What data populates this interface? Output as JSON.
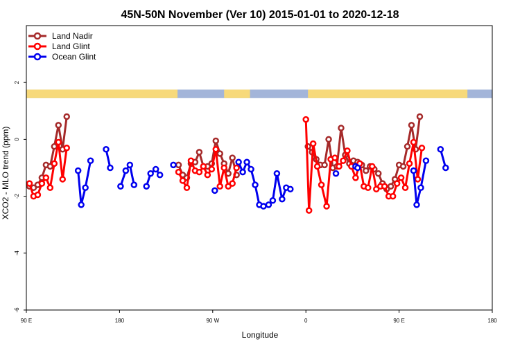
{
  "chart_data": {
    "type": "line",
    "title": "45N-50N November (Ver 10)   2015-01-01 to 2020-12-18",
    "xlabel": "Longitude",
    "ylabel": "XCO2 - MLO trend (ppm)",
    "xlim": [
      90,
      540
    ],
    "ylim": [
      -6,
      4
    ],
    "x_ticks": [
      {
        "value": 90,
        "label": "90 E"
      },
      {
        "value": 180,
        "label": "180"
      },
      {
        "value": 270,
        "label": "90 W"
      },
      {
        "value": 360,
        "label": "0"
      },
      {
        "value": 450,
        "label": "90 E"
      },
      {
        "value": 540,
        "label": "180"
      }
    ],
    "y_ticks": [
      {
        "value": -6,
        "label": "-6"
      },
      {
        "value": -4,
        "label": "-4"
      },
      {
        "value": -2,
        "label": "-2"
      },
      {
        "value": 0,
        "label": "0"
      },
      {
        "value": 2,
        "label": "2"
      }
    ],
    "land_band": {
      "y_range": [
        1.45,
        1.75
      ],
      "ocean_color": "#a3b5d9",
      "land_color": "#f7d97a",
      "land_segments": [
        [
          90,
          236
        ],
        [
          281,
          306
        ],
        [
          362,
          516
        ]
      ]
    },
    "legend_position": "top-left",
    "series": [
      {
        "name": "Land Nadir",
        "color": "#a52a2a",
        "segments": [
          [
            [
              93,
              -1.65
            ],
            [
              97,
              -1.7
            ],
            [
              101,
              -1.6
            ],
            [
              105,
              -1.35
            ],
            [
              109,
              -0.9
            ],
            [
              113,
              -0.95
            ],
            [
              117,
              -0.25
            ],
            [
              121,
              0.5
            ],
            [
              125,
              -0.35
            ],
            [
              129,
              0.8
            ]
          ],
          [
            [
              237,
              -0.9
            ],
            [
              241,
              -1.25
            ],
            [
              245,
              -1.35
            ],
            [
              249,
              -0.85
            ],
            [
              253,
              -0.8
            ],
            [
              257,
              -0.45
            ],
            [
              261,
              -0.95
            ],
            [
              265,
              -0.95
            ],
            [
              269,
              -0.85
            ],
            [
              273,
              -0.05
            ],
            [
              277,
              -0.5
            ],
            [
              281,
              -0.85
            ],
            [
              285,
              -1.2
            ],
            [
              289,
              -0.65
            ],
            [
              293,
              -1.25
            ]
          ],
          [
            [
              362,
              -0.25
            ],
            [
              366,
              -0.45
            ],
            [
              370,
              -0.7
            ],
            [
              374,
              -0.9
            ],
            [
              378,
              -0.9
            ],
            [
              382,
              0.0
            ],
            [
              386,
              -1.0
            ],
            [
              390,
              -0.95
            ],
            [
              394,
              0.4
            ],
            [
              398,
              -0.55
            ],
            [
              402,
              -0.85
            ],
            [
              406,
              -0.75
            ],
            [
              410,
              -0.8
            ],
            [
              414,
              -0.9
            ],
            [
              418,
              -1.1
            ],
            [
              422,
              -0.95
            ],
            [
              426,
              -1.05
            ],
            [
              430,
              -1.2
            ],
            [
              434,
              -1.55
            ],
            [
              438,
              -1.75
            ],
            [
              442,
              -1.65
            ],
            [
              446,
              -1.4
            ],
            [
              450,
              -0.9
            ],
            [
              454,
              -0.95
            ],
            [
              458,
              -0.25
            ],
            [
              462,
              0.5
            ],
            [
              466,
              -0.35
            ],
            [
              470,
              0.8
            ]
          ]
        ]
      },
      {
        "name": "Land Glint",
        "color": "#ff0000",
        "segments": [
          [
            [
              93,
              -1.55
            ],
            [
              97,
              -2.0
            ],
            [
              101,
              -1.95
            ],
            [
              105,
              -1.55
            ],
            [
              109,
              -1.35
            ],
            [
              113,
              -1.7
            ],
            [
              117,
              -0.85
            ],
            [
              121,
              -0.1
            ],
            [
              125,
              -1.4
            ],
            [
              129,
              -0.3
            ]
          ],
          [
            [
              237,
              -1.15
            ],
            [
              241,
              -1.45
            ],
            [
              245,
              -1.7
            ],
            [
              249,
              -0.75
            ],
            [
              253,
              -1.1
            ],
            [
              257,
              -1.15
            ],
            [
              261,
              -0.95
            ],
            [
              265,
              -1.25
            ],
            [
              269,
              -1.05
            ],
            [
              273,
              -0.35
            ],
            [
              277,
              -1.65
            ],
            [
              281,
              -1.0
            ],
            [
              285,
              -1.65
            ],
            [
              289,
              -1.55
            ],
            [
              293,
              -1.0
            ]
          ],
          [
            [
              360,
              0.7
            ],
            [
              363,
              -2.5
            ],
            [
              367,
              -0.15
            ],
            [
              371,
              -0.95
            ],
            [
              375,
              -1.6
            ],
            [
              380,
              -2.35
            ],
            [
              384,
              -0.7
            ],
            [
              388,
              -0.65
            ],
            [
              392,
              -0.95
            ],
            [
              396,
              -0.75
            ],
            [
              400,
              -0.4
            ],
            [
              404,
              -0.95
            ],
            [
              408,
              -1.35
            ],
            [
              412,
              -0.85
            ],
            [
              416,
              -1.65
            ],
            [
              420,
              -1.7
            ],
            [
              424,
              -0.95
            ],
            [
              428,
              -1.75
            ],
            [
              432,
              -1.65
            ],
            [
              436,
              -1.65
            ],
            [
              440,
              -2.0
            ],
            [
              444,
              -2.0
            ],
            [
              448,
              -1.55
            ],
            [
              452,
              -1.35
            ],
            [
              456,
              -1.7
            ],
            [
              460,
              -0.85
            ],
            [
              464,
              -0.1
            ],
            [
              468,
              -1.4
            ],
            [
              472,
              -0.3
            ]
          ]
        ]
      },
      {
        "name": "Ocean Glint",
        "color": "#0000ee",
        "segments": [
          [
            [
              140,
              -1.1
            ],
            [
              143,
              -2.3
            ],
            [
              147,
              -1.7
            ],
            [
              152,
              -0.75
            ]
          ],
          [
            [
              167,
              -0.35
            ],
            [
              171,
              -1.0
            ]
          ],
          [
            [
              181,
              -1.65
            ],
            [
              186,
              -1.1
            ],
            [
              190,
              -0.9
            ],
            [
              194,
              -1.6
            ]
          ],
          [
            [
              206,
              -1.65
            ],
            [
              210,
              -1.2
            ],
            [
              215,
              -1.05
            ],
            [
              219,
              -1.25
            ]
          ],
          [
            [
              232,
              -0.9
            ]
          ],
          [
            [
              272,
              -1.8
            ]
          ],
          [
            [
              295,
              -0.8
            ],
            [
              299,
              -1.15
            ],
            [
              303,
              -0.8
            ],
            [
              307,
              -1.05
            ],
            [
              311,
              -1.6
            ],
            [
              315,
              -2.3
            ],
            [
              319,
              -2.35
            ],
            [
              324,
              -2.3
            ],
            [
              328,
              -2.15
            ],
            [
              332,
              -1.2
            ],
            [
              337,
              -2.1
            ],
            [
              341,
              -1.7
            ],
            [
              345,
              -1.75
            ]
          ],
          [
            [
              389,
              -1.2
            ]
          ],
          [
            [
              408,
              -0.95
            ],
            [
              410,
              -1.0
            ]
          ],
          [
            [
              464,
              -1.1
            ],
            [
              467,
              -2.3
            ],
            [
              471,
              -1.7
            ],
            [
              476,
              -0.75
            ]
          ],
          [
            [
              490,
              -0.35
            ],
            [
              495,
              -1.0
            ]
          ]
        ]
      }
    ]
  }
}
